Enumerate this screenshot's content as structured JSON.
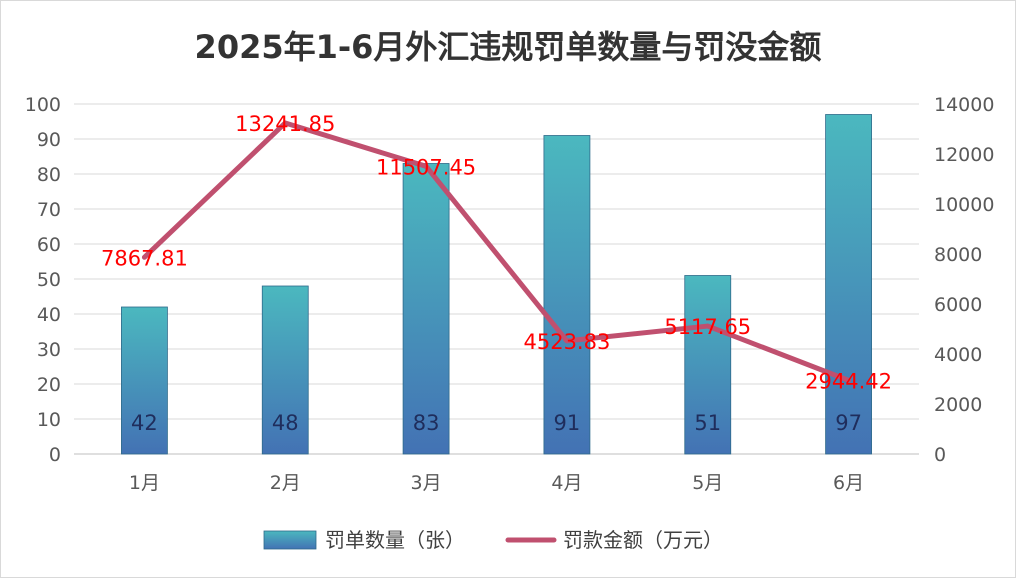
{
  "chart_data": {
    "type": "bar",
    "title": "2025年1-6月外汇违规罚单数量与罚没金额",
    "categories": [
      "1月",
      "2月",
      "3月",
      "4月",
      "5月",
      "6月"
    ],
    "series": [
      {
        "name": "罚单数量（张）",
        "type": "bar",
        "axis": "left",
        "values": [
          42,
          48,
          83,
          91,
          51,
          97
        ],
        "labels": [
          "42",
          "48",
          "83",
          "91",
          "51",
          "97"
        ],
        "color_top": "#4bb8bf",
        "color_bottom": "#4372b4"
      },
      {
        "name": "罚款金额（万元）",
        "type": "line",
        "axis": "right",
        "values": [
          7867.81,
          13241.85,
          11507.45,
          4523.83,
          5117.65,
          2944.42
        ],
        "labels": [
          "7867.81",
          "13241.85",
          "11507.45",
          "4523.83",
          "5117.65",
          "2944.42"
        ],
        "color": "#c0506f"
      }
    ],
    "y_left": {
      "min": 0,
      "max": 100,
      "step": 10,
      "ticks": [
        "0",
        "10",
        "20",
        "30",
        "40",
        "50",
        "60",
        "70",
        "80",
        "90",
        "100"
      ]
    },
    "y_right": {
      "min": 0,
      "max": 14000,
      "step": 2000,
      "ticks": [
        "0",
        "2000",
        "4000",
        "6000",
        "8000",
        "10000",
        "12000",
        "14000"
      ]
    },
    "grid": true,
    "legend_position": "bottom"
  }
}
